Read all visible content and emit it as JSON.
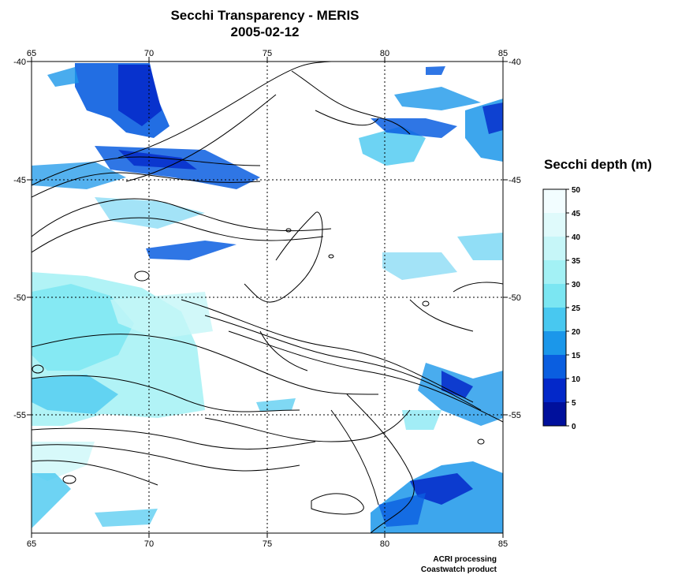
{
  "header": {
    "title": "Secchi Transparency - MERIS",
    "date": "2005-02-12"
  },
  "map": {
    "lon_range": [
      65,
      85
    ],
    "lat_range": [
      -60,
      -40
    ],
    "lon_ticks": [
      "65",
      "70",
      "75",
      "80",
      "85"
    ],
    "lat_ticks": [
      "-40",
      "-45",
      "-50",
      "-55"
    ],
    "grid": "dotted",
    "land_color": "#ffffff",
    "contour_color": "#000000"
  },
  "legend": {
    "title": "Secchi depth (m)",
    "ticks": [
      "50",
      "45",
      "40",
      "35",
      "30",
      "25",
      "20",
      "15",
      "10",
      "5",
      "0"
    ],
    "colors": [
      "#f2fdff",
      "#dffafb",
      "#c6f6f8",
      "#a3f1f5",
      "#7be6f2",
      "#48c8f0",
      "#1b97ea",
      "#0a5ee0",
      "#0328c9",
      "#00109c"
    ]
  },
  "credits": {
    "line1": "ACRI processing",
    "line2": "Coastwatch product"
  }
}
